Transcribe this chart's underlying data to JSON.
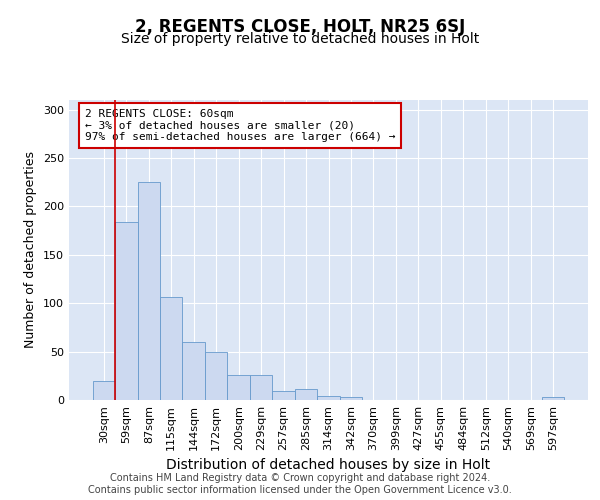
{
  "title1": "2, REGENTS CLOSE, HOLT, NR25 6SJ",
  "title2": "Size of property relative to detached houses in Holt",
  "xlabel": "Distribution of detached houses by size in Holt",
  "ylabel": "Number of detached properties",
  "categories": [
    "30sqm",
    "59sqm",
    "87sqm",
    "115sqm",
    "144sqm",
    "172sqm",
    "200sqm",
    "229sqm",
    "257sqm",
    "285sqm",
    "314sqm",
    "342sqm",
    "370sqm",
    "399sqm",
    "427sqm",
    "455sqm",
    "484sqm",
    "512sqm",
    "540sqm",
    "569sqm",
    "597sqm"
  ],
  "values": [
    20,
    184,
    225,
    106,
    60,
    50,
    26,
    26,
    9,
    11,
    4,
    3,
    0,
    0,
    0,
    0,
    0,
    0,
    0,
    0,
    3
  ],
  "bar_color": "#ccd9f0",
  "bar_edge_color": "#6699cc",
  "annotation_box_color": "#ffffff",
  "annotation_box_edge_color": "#cc0000",
  "vline_color": "#cc0000",
  "vline_x": 1,
  "annotation_title": "2 REGENTS CLOSE: 60sqm",
  "annotation_line1": "← 3% of detached houses are smaller (20)",
  "annotation_line2": "97% of semi-detached houses are larger (664) →",
  "ylim": [
    0,
    310
  ],
  "yticks": [
    0,
    50,
    100,
    150,
    200,
    250,
    300
  ],
  "footer1": "Contains HM Land Registry data © Crown copyright and database right 2024.",
  "footer2": "Contains public sector information licensed under the Open Government Licence v3.0.",
  "fig_bg_color": "#ffffff",
  "plot_bg_color": "#dce6f5",
  "grid_color": "#ffffff",
  "title1_fontsize": 12,
  "title2_fontsize": 10,
  "xlabel_fontsize": 10,
  "ylabel_fontsize": 9,
  "tick_fontsize": 8,
  "annot_fontsize": 8,
  "footer_fontsize": 7
}
